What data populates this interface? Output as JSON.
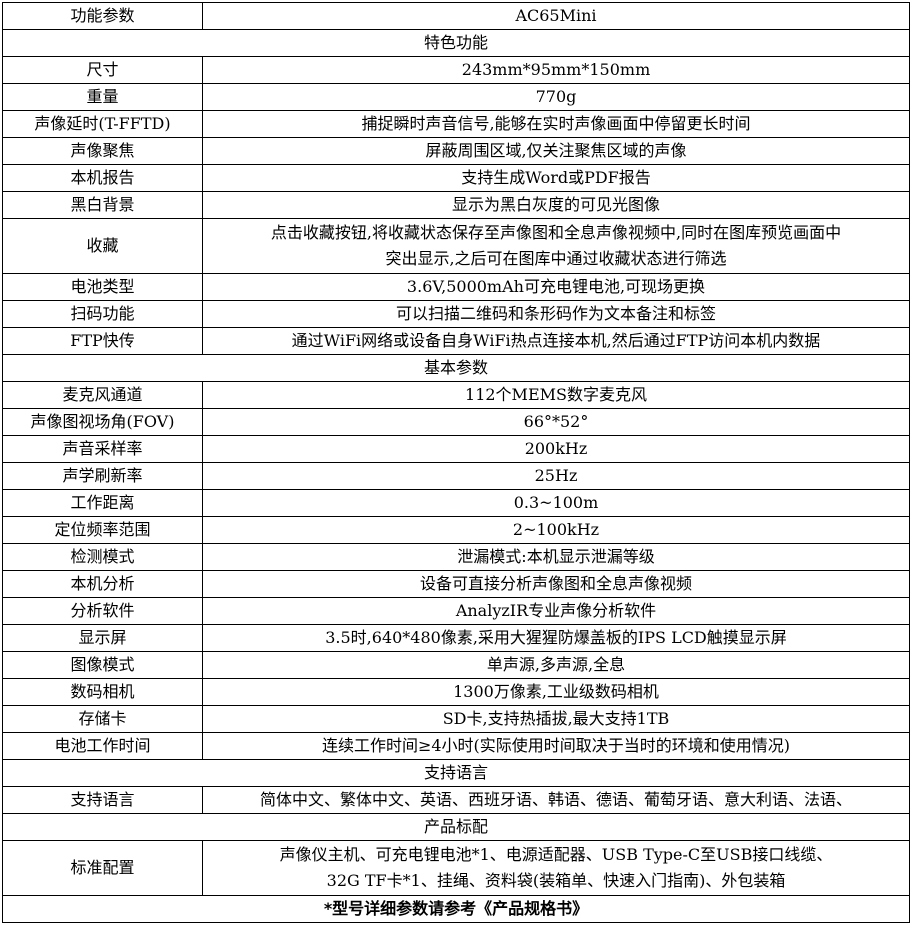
{
  "table": {
    "rows": [
      {
        "type": "spec",
        "label": "功能参数",
        "value": "AC65Mini"
      },
      {
        "type": "section",
        "text": "特色功能"
      },
      {
        "type": "spec",
        "label": "尺寸",
        "value": "243mm*95mm*150mm"
      },
      {
        "type": "spec",
        "label": "重量",
        "value": "770g"
      },
      {
        "type": "spec",
        "label": "声像延时(T-FFTD)",
        "value": "捕捉瞬时声音信号,能够在实时声像画面中停留更长时间"
      },
      {
        "type": "spec",
        "label": "声像聚焦",
        "value": "屏蔽周围区域,仅关注聚焦区域的声像"
      },
      {
        "type": "spec",
        "label": "本机报告",
        "value": "支持生成Word或PDF报告"
      },
      {
        "type": "spec",
        "label": "黑白背景",
        "value": "显示为黑白灰度的可见光图像"
      },
      {
        "type": "spec",
        "label": "收藏",
        "tall": true,
        "value": "点击收藏按钮,将收藏状态保存至声像图和全息声像视频中,同时在图库预览画面中\n突出显示,之后可在图库中通过收藏状态进行筛选"
      },
      {
        "type": "spec",
        "label": "电池类型",
        "value": "3.6V,5000mAh可充电锂电池,可现场更换"
      },
      {
        "type": "spec",
        "label": "扫码功能",
        "value": "可以扫描二维码和条形码作为文本备注和标签"
      },
      {
        "type": "spec",
        "label": "FTP快传",
        "value": "通过WiFi网络或设备自身WiFi热点连接本机,然后通过FTP访问本机内数据"
      },
      {
        "type": "section",
        "text": "基本参数"
      },
      {
        "type": "spec",
        "label": "麦克风通道",
        "value": "112个MEMS数字麦克风"
      },
      {
        "type": "spec",
        "label": "声像图视场角(FOV)",
        "value": "66°*52°"
      },
      {
        "type": "spec",
        "label": "声音采样率",
        "value": "200kHz"
      },
      {
        "type": "spec",
        "label": "声学刷新率",
        "value": "25Hz"
      },
      {
        "type": "spec",
        "label": "工作距离",
        "value": "0.3~100m"
      },
      {
        "type": "spec",
        "label": "定位频率范围",
        "value": "2~100kHz"
      },
      {
        "type": "spec",
        "label": "检测模式",
        "value": "泄漏模式:本机显示泄漏等级"
      },
      {
        "type": "spec",
        "label": "本机分析",
        "value": "设备可直接分析声像图和全息声像视频"
      },
      {
        "type": "spec",
        "label": "分析软件",
        "value": "AnalyzIR专业声像分析软件"
      },
      {
        "type": "spec",
        "label": "显示屏",
        "value": "3.5时,640*480像素,采用大猩猩防爆盖板的IPS LCD触摸显示屏"
      },
      {
        "type": "spec",
        "label": "图像模式",
        "value": "单声源,多声源,全息"
      },
      {
        "type": "spec",
        "label": "数码相机",
        "value": "1300万像素,工业级数码相机"
      },
      {
        "type": "spec",
        "label": "存储卡",
        "value": "SD卡,支持热插拔,最大支持1TB"
      },
      {
        "type": "spec",
        "label": "电池工作时间",
        "value": "连续工作时间≥4小时(实际使用时间取决于当时的环境和使用情况)"
      },
      {
        "type": "section",
        "text": "支持语言"
      },
      {
        "type": "spec",
        "label": "支持语言",
        "nowrap": true,
        "value": "简体中文、繁体中文、英语、西班牙语、韩语、德语、葡萄牙语、意大利语、法语、"
      },
      {
        "type": "section",
        "text": "产品标配"
      },
      {
        "type": "spec",
        "label": "标准配置",
        "tall": true,
        "value": "声像仪主机、可充电锂电池*1、电源适配器、USB Type-C至USB接口线缆、\n32G TF卡*1、挂绳、资料袋(装箱单、快速入门指南)、外包装箱"
      }
    ],
    "footer": "*型号详细参数请参考《产品规格书》"
  }
}
